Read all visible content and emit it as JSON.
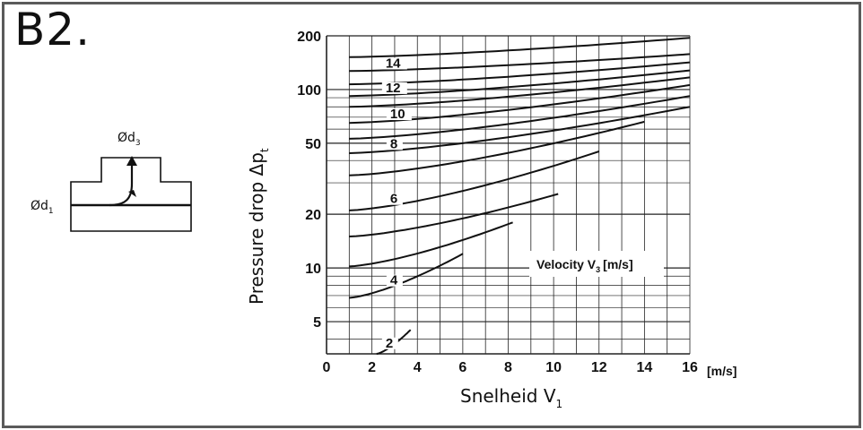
{
  "panel_label": "B2.",
  "colors": {
    "border": "#5a5a5a",
    "grid": "#222222",
    "curve": "#111111",
    "background": "#ffffff"
  },
  "schematic": {
    "outlet_diameter_main": "Ød",
    "outlet_diameter_sub": "3",
    "inlet_diameter_main": "Ød",
    "inlet_diameter_sub": "1"
  },
  "chart_data": {
    "type": "line",
    "scale_y": "log",
    "ylim": [
      3.3,
      200
    ],
    "xlim": [
      0,
      16
    ],
    "grid": true,
    "ylabel_main": "Pressure drop Δp",
    "ylabel_sub": "t",
    "xlabel_main": "Snelheid V",
    "xlabel_sub": "1",
    "x_unit": "[m/s]",
    "y_ticks": [
      "200",
      "100",
      "50",
      "20",
      "10",
      "5"
    ],
    "x_ticks": [
      "0",
      "2",
      "4",
      "6",
      "8",
      "10",
      "12",
      "14",
      "16"
    ],
    "legend_title_main": "Velocity V",
    "legend_title_sub": "3",
    "legend_title_unit": "[m/s]",
    "series": [
      {
        "label": "2",
        "x": [
          2.2,
          3.7
        ],
        "y": [
          3.3,
          4.5
        ]
      },
      {
        "label": "4",
        "x": [
          1,
          6
        ],
        "y": [
          6.8,
          12
        ]
      },
      {
        "label": "",
        "x": [
          1,
          8.2
        ],
        "y": [
          10.2,
          18
        ]
      },
      {
        "label": "",
        "x": [
          1,
          10.2
        ],
        "y": [
          15,
          26
        ]
      },
      {
        "label": "6",
        "x": [
          1,
          12
        ],
        "y": [
          21,
          45
        ]
      },
      {
        "label": "",
        "x": [
          1,
          14
        ],
        "y": [
          33,
          66
        ]
      },
      {
        "label": "8",
        "x": [
          1,
          16
        ],
        "y": [
          44,
          80
        ]
      },
      {
        "label": "",
        "x": [
          1,
          16
        ],
        "y": [
          53,
          92
        ]
      },
      {
        "label": "10",
        "x": [
          1,
          16
        ],
        "y": [
          65,
          106
        ]
      },
      {
        "label": "",
        "x": [
          1,
          16
        ],
        "y": [
          80,
          117
        ]
      },
      {
        "label": "12",
        "x": [
          1,
          16
        ],
        "y": [
          92,
          128
        ]
      },
      {
        "label": "",
        "x": [
          1,
          16
        ],
        "y": [
          107,
          142
        ]
      },
      {
        "label": "14",
        "x": [
          1,
          16
        ],
        "y": [
          127,
          158
        ]
      },
      {
        "label": "",
        "x": [
          1,
          16
        ],
        "y": [
          152,
          195
        ]
      }
    ]
  }
}
